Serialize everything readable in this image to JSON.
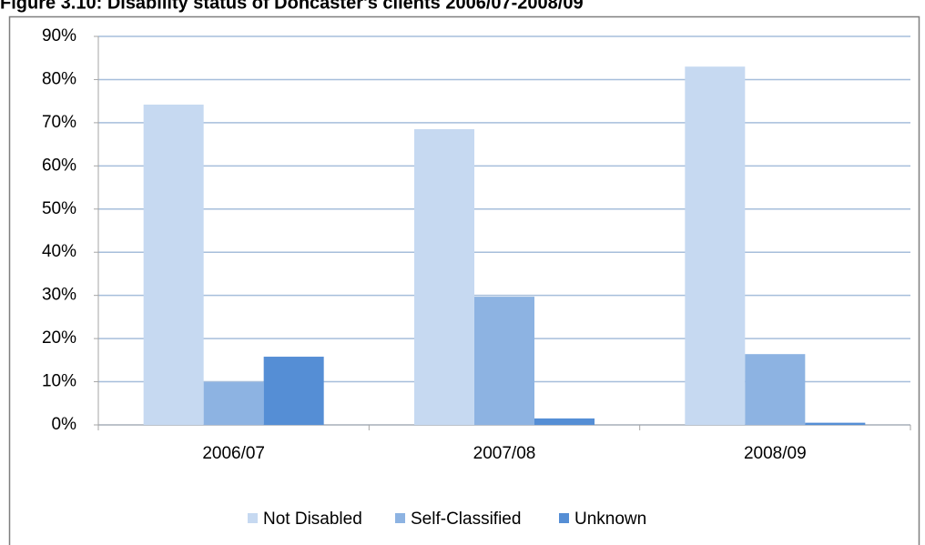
{
  "chart_data": {
    "type": "bar",
    "title": "Figure 3.10: Disability status of Doncaster's clients 2006/07-2008/09",
    "categories": [
      "2006/07",
      "2007/08",
      "2008/09"
    ],
    "series": [
      {
        "name": "Not Disabled",
        "color": "#c6d9f1",
        "values": [
          74.2,
          68.5,
          83
        ]
      },
      {
        "name": "Self-Classified",
        "color": "#8db3e2",
        "values": [
          9.9,
          29.7,
          16.4
        ]
      },
      {
        "name": "Unknown",
        "color": "#558ed5",
        "values": [
          15.8,
          1.5,
          0.5
        ]
      }
    ],
    "ylim": [
      0,
      90
    ],
    "yticks": [
      {
        "value": 0,
        "label": "0%"
      },
      {
        "value": 10,
        "label": "10%"
      },
      {
        "value": 20,
        "label": "20%"
      },
      {
        "value": 30,
        "label": "30%"
      },
      {
        "value": 40,
        "label": "40%"
      },
      {
        "value": 50,
        "label": "50%"
      },
      {
        "value": 60,
        "label": "60%"
      },
      {
        "value": 70,
        "label": "70%"
      },
      {
        "value": 80,
        "label": "80%"
      },
      {
        "value": 90,
        "label": "90%"
      }
    ],
    "grid": true,
    "legend": "bottom"
  }
}
